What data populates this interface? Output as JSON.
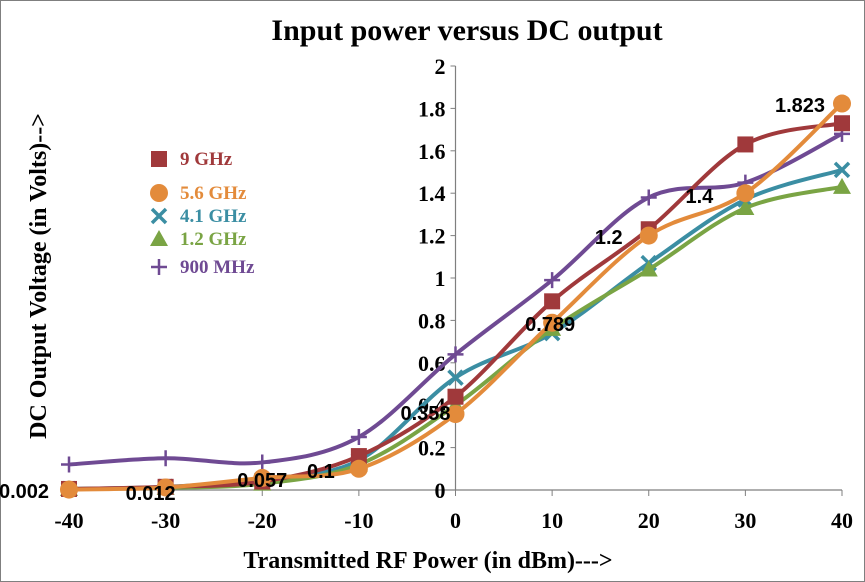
{
  "chart_data": {
    "type": "line",
    "title": "Input power versus DC output",
    "xlabel": "Transmitted RF Power (in dBm)--->",
    "ylabel": "DC Output Voltage  (in Volts)-->",
    "x": [
      -40,
      -30,
      -20,
      -10,
      0,
      10,
      20,
      30,
      40
    ],
    "xlim": [
      -40,
      40
    ],
    "ylim": [
      0,
      2
    ],
    "x_ticks": [
      "-40",
      "-30",
      "-20",
      "-10",
      "0",
      "10",
      "20",
      "30",
      "40"
    ],
    "y_ticks": [
      "0",
      "0.2",
      "0.4",
      "0.6",
      "0.8",
      "1",
      "1.2",
      "1.4",
      "1.6",
      "1.8",
      "2"
    ],
    "grid": false,
    "legend_position": "top-left",
    "series": [
      {
        "name": "9 GHz",
        "color": "#a0393b",
        "marker": "square",
        "values": [
          0.005,
          0.015,
          0.04,
          0.16,
          0.44,
          0.89,
          1.23,
          1.63,
          1.73
        ]
      },
      {
        "name": "5.6 GHz",
        "color": "#e38b3b",
        "marker": "circle",
        "values": [
          0.002,
          0.012,
          0.057,
          0.1,
          0.358,
          0.789,
          1.2,
          1.4,
          1.823
        ]
      },
      {
        "name": "4.1 GHz",
        "color": "#3b8ea3",
        "marker": "x",
        "values": [
          0.005,
          0.015,
          0.05,
          0.14,
          0.53,
          0.74,
          1.07,
          1.37,
          1.51
        ]
      },
      {
        "name": "1.2 GHz",
        "color": "#7aa444",
        "marker": "triangle",
        "values": [
          0.005,
          0.01,
          0.03,
          0.12,
          0.4,
          0.76,
          1.04,
          1.33,
          1.43
        ]
      },
      {
        "name": "900 MHz",
        "color": "#6f4a93",
        "marker": "plus",
        "values": [
          0.12,
          0.15,
          0.13,
          0.25,
          0.64,
          0.99,
          1.38,
          1.45,
          1.68
        ]
      }
    ],
    "data_labels": [
      {
        "x": -40,
        "text": "0.002"
      },
      {
        "x": -30,
        "text": "0.012"
      },
      {
        "x": -20,
        "text": "0.057"
      },
      {
        "x": -10,
        "text": "0.1"
      },
      {
        "x": 0,
        "text": "0.358"
      },
      {
        "x": 10,
        "text": "0.789"
      },
      {
        "x": 20,
        "text": "1.2"
      },
      {
        "x": 30,
        "text": "1.4"
      },
      {
        "x": 40,
        "text": "1.823"
      }
    ]
  }
}
